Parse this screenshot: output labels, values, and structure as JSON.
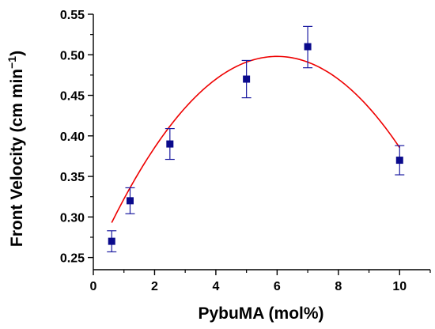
{
  "chart_data": {
    "type": "scatter",
    "title": "",
    "xlabel": "PybuMA (mol%)",
    "ylabel": {
      "main": "Front Velocity (cm min",
      "superscript": "−1",
      "close": ")"
    },
    "xlim": [
      0,
      11
    ],
    "ylim": [
      0.235,
      0.55
    ],
    "x_ticks": [
      0,
      2,
      4,
      6,
      8,
      10
    ],
    "y_ticks": [
      0.25,
      0.3,
      0.35,
      0.4,
      0.45,
      0.5,
      0.55
    ],
    "x_tick_labels": [
      "0",
      "2",
      "4",
      "6",
      "8",
      "10"
    ],
    "y_tick_labels": [
      "0.25",
      "0.30",
      "0.35",
      "0.40",
      "0.45",
      "0.50",
      "0.55"
    ],
    "grid": false,
    "legend": "none",
    "colors": {
      "points": "#0a0a8c",
      "error_bars": "#1a1aa0",
      "fit_line": "#ee0000",
      "axes": "#000000"
    },
    "series": [
      {
        "marker": "square",
        "x": [
          0.6,
          1.2,
          2.5,
          5.0,
          7.0,
          10.0
        ],
        "y": [
          0.27,
          0.32,
          0.39,
          0.47,
          0.51,
          0.37
        ],
        "err_low": [
          0.257,
          0.304,
          0.371,
          0.447,
          0.484,
          0.352
        ],
        "err_high": [
          0.283,
          0.336,
          0.409,
          0.493,
          0.535,
          0.388
        ]
      }
    ],
    "fit": {
      "type": "quadratic",
      "x_range": [
        0.6,
        10.0
      ],
      "vertex_x": 6.0,
      "vertex_y": 0.498,
      "a": -0.00703
    }
  }
}
